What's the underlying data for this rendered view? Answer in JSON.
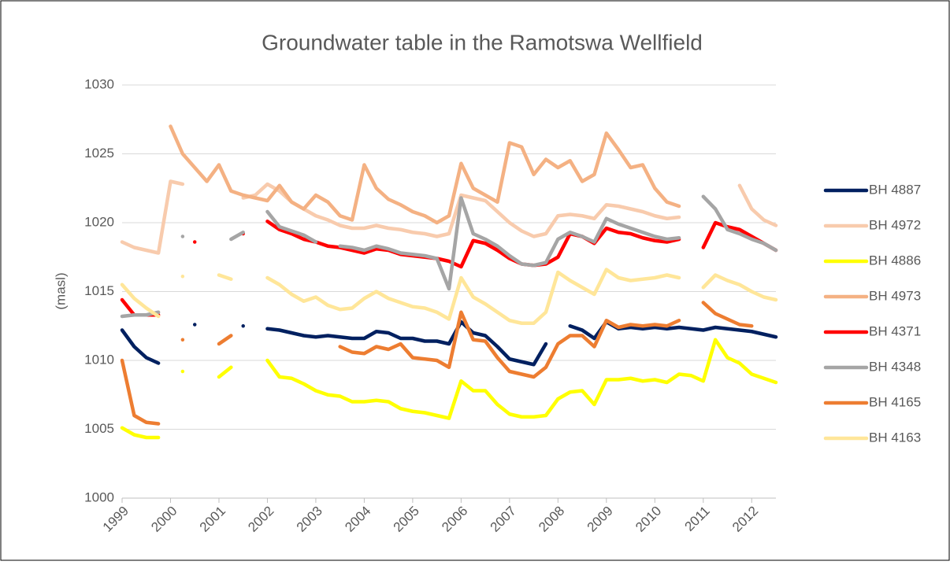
{
  "chart_data": {
    "type": "line",
    "title": "Groundwater table in the Ramotswa Wellfield",
    "y_label": "(masl)",
    "legend": "right",
    "grid": true,
    "xlim": [
      1999,
      2012.5
    ],
    "xticks": [
      1999,
      2000,
      2001,
      2002,
      2003,
      2004,
      2005,
      2006,
      2007,
      2008,
      2009,
      2010,
      2011,
      2012
    ],
    "ylim": [
      1000,
      1030
    ],
    "yticks": [
      1000,
      1005,
      1010,
      1015,
      1020,
      1025,
      1030
    ],
    "x": [
      1999,
      1999.25,
      1999.5,
      1999.75,
      2000,
      2000.25,
      2000.5,
      2000.75,
      2001,
      2001.25,
      2001.5,
      2001.75,
      2002,
      2002.25,
      2002.5,
      2002.75,
      2003,
      2003.25,
      2003.5,
      2003.75,
      2004,
      2004.25,
      2004.5,
      2004.75,
      2005,
      2005.25,
      2005.5,
      2005.75,
      2006,
      2006.25,
      2006.5,
      2006.75,
      2007,
      2007.25,
      2007.5,
      2007.75,
      2008,
      2008.25,
      2008.5,
      2008.75,
      2009,
      2009.25,
      2009.5,
      2009.75,
      2010,
      2010.25,
      2010.5,
      2010.75,
      2011,
      2011.25,
      2011.5,
      2011.75,
      2012,
      2012.25,
      2012.5
    ],
    "series": [
      {
        "name": "BH 4887",
        "color": "#002060",
        "values": [
          1012.2,
          1011,
          1010.2,
          1009.8,
          null,
          null,
          1012.6,
          null,
          null,
          null,
          1012.5,
          null,
          1012.3,
          1012.2,
          1012,
          1011.8,
          1011.7,
          1011.8,
          1011.7,
          1011.6,
          1011.6,
          1012.1,
          1012,
          1011.6,
          1011.6,
          1011.4,
          1011.4,
          1011.2,
          1012.8,
          1012,
          1011.8,
          1011,
          1010.1,
          1009.9,
          1009.7,
          1011.2,
          null,
          1012.5,
          1012.2,
          1011.6,
          1012.8,
          1012.3,
          1012.4,
          1012.3,
          1012.4,
          1012.3,
          1012.4,
          1012.3,
          1012.2,
          1012.4,
          1012.3,
          1012.2,
          1012.1,
          1011.9,
          1011.7
        ]
      },
      {
        "name": "BH 4972",
        "color": "#f8cbad",
        "values": [
          1018.6,
          1018.2,
          1018,
          1017.8,
          1023,
          1022.8,
          null,
          null,
          null,
          null,
          1021.8,
          1022,
          1022.8,
          1022.3,
          1021.5,
          1021,
          1020.5,
          1020.2,
          1019.8,
          1019.6,
          1019.6,
          1019.8,
          1019.6,
          1019.5,
          1019.3,
          1019.2,
          1019,
          1019.2,
          1022,
          1021.8,
          1021.6,
          1020.8,
          1020,
          1019.4,
          1019,
          1019.2,
          1020.5,
          1020.6,
          1020.5,
          1020.3,
          1021.3,
          1021.2,
          1021,
          1020.8,
          1020.5,
          1020.3,
          1020.4,
          null,
          null,
          null,
          null,
          1022.7,
          1021,
          1020.2,
          1019.8
        ]
      },
      {
        "name": "BH 4886",
        "color": "#ffff00",
        "values": [
          1005.1,
          1004.6,
          1004.4,
          1004.4,
          null,
          1009.2,
          null,
          null,
          1008.8,
          1009.5,
          null,
          null,
          1010,
          1008.8,
          1008.7,
          1008.3,
          1007.8,
          1007.5,
          1007.4,
          1007,
          1007,
          1007.1,
          1007,
          1006.5,
          1006.3,
          1006.2,
          1006,
          1005.8,
          1008.5,
          1007.8,
          1007.8,
          1006.8,
          1006.1,
          1005.9,
          1005.9,
          1006,
          1007.2,
          1007.7,
          1007.8,
          1006.8,
          1008.6,
          1008.6,
          1008.7,
          1008.5,
          1008.6,
          1008.4,
          1009,
          1008.9,
          1008.5,
          1011.5,
          1010.2,
          1009.8,
          1009,
          1008.7,
          1008.4
        ]
      },
      {
        "name": "BH 4973",
        "color": "#f4b183",
        "values": [
          null,
          null,
          null,
          null,
          1027,
          1025,
          1024,
          1023,
          1024.2,
          1022.3,
          1022,
          1021.8,
          1021.6,
          1022.7,
          1021.5,
          1021,
          1022,
          1021.5,
          1020.5,
          1020.2,
          1024.2,
          1022.5,
          1021.7,
          1021.3,
          1020.8,
          1020.5,
          1020,
          1020.5,
          1024.3,
          1022.5,
          1022,
          1021.5,
          1025.8,
          1025.5,
          1023.5,
          1024.6,
          1024,
          1024.5,
          1023,
          1023.5,
          1026.5,
          1025.3,
          1024,
          1024.2,
          1022.5,
          1021.5,
          1021.2,
          null,
          null,
          null,
          null,
          null,
          null,
          null,
          null
        ]
      },
      {
        "name": "BH 4371",
        "color": "#ff0000",
        "values": [
          1014.4,
          1013.3,
          1013.3,
          1013.3,
          null,
          null,
          1018.6,
          null,
          null,
          null,
          1019.2,
          null,
          1020.1,
          1019.5,
          1019.2,
          1018.8,
          1018.6,
          1018.3,
          1018.2,
          1018,
          1017.8,
          1018.1,
          1018,
          1017.7,
          1017.6,
          1017.5,
          1017.4,
          1017.2,
          1016.8,
          1018.7,
          1018.5,
          1018,
          1017.4,
          1017,
          1016.9,
          1017,
          1017.5,
          1019.2,
          1019,
          1018.5,
          1019.6,
          1019.3,
          1019.2,
          1018.9,
          1018.7,
          1018.6,
          1018.8,
          null,
          1018.2,
          1020,
          1019.7,
          1019.5,
          1019,
          1018.5,
          1018
        ]
      },
      {
        "name": "BH 4348",
        "color": "#a5a5a5",
        "values": [
          1013.2,
          1013.3,
          1013.3,
          1013.5,
          null,
          1019,
          null,
          null,
          null,
          1018.8,
          1019.3,
          null,
          1020.8,
          1019.7,
          1019.4,
          1019.1,
          1018.6,
          null,
          1018.3,
          1018.2,
          1018,
          1018.3,
          1018.1,
          1017.8,
          1017.7,
          1017.6,
          1017.4,
          1015.2,
          1021.8,
          1019.2,
          1018.8,
          1018.3,
          1017.6,
          1017,
          1016.9,
          1017.1,
          1018.8,
          1019.3,
          1019,
          1018.6,
          1020.3,
          1019.9,
          1019.6,
          1019.3,
          1019,
          1018.8,
          1018.9,
          null,
          1021.9,
          1021,
          1019.5,
          1019.2,
          1018.8,
          1018.5,
          1018
        ]
      },
      {
        "name": "BH 4165",
        "color": "#ed7d31",
        "values": [
          1010,
          1006,
          1005.5,
          1005.4,
          null,
          1011.5,
          null,
          null,
          1011.2,
          1011.8,
          null,
          null,
          null,
          null,
          null,
          null,
          null,
          null,
          1011,
          1010.6,
          1010.5,
          1011,
          1010.8,
          1011.2,
          1010.2,
          1010.1,
          1010,
          1009.5,
          1013.5,
          1011.5,
          1011.4,
          1010.2,
          1009.2,
          1009,
          1008.8,
          1009.5,
          1011.2,
          1011.8,
          1011.8,
          1011,
          1012.9,
          1012.4,
          1012.6,
          1012.5,
          1012.6,
          1012.5,
          1012.9,
          null,
          1014.2,
          1013.4,
          1013,
          1012.6,
          1012.5,
          null,
          null
        ]
      },
      {
        "name": "BH 4163",
        "color": "#ffe699",
        "values": [
          1015.5,
          1014.5,
          1013.8,
          1013.2,
          null,
          1016.1,
          null,
          null,
          1016.2,
          1015.9,
          null,
          null,
          1016,
          1015.5,
          1014.8,
          1014.3,
          1014.6,
          1014,
          1013.7,
          1013.8,
          1014.5,
          1015,
          1014.5,
          1014.2,
          1013.9,
          1013.8,
          1013.5,
          1013,
          1016,
          1014.6,
          1014.1,
          1013.5,
          1012.9,
          1012.7,
          1012.7,
          1013.5,
          1016.4,
          1015.8,
          1015.3,
          1014.8,
          1016.6,
          1016,
          1015.8,
          1015.9,
          1016,
          1016.2,
          1016,
          null,
          1015.3,
          1016.2,
          1015.8,
          1015.5,
          1015,
          1014.6,
          1014.4
        ]
      }
    ]
  }
}
